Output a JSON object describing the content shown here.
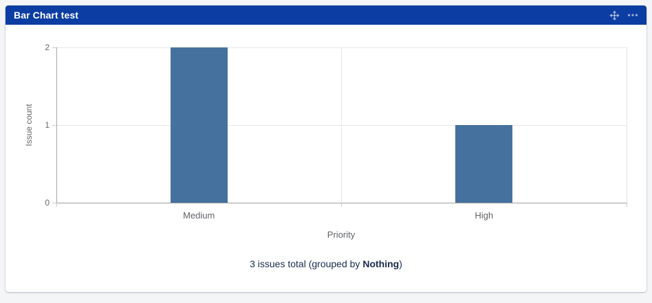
{
  "page": {
    "background_color": "#f4f5f7"
  },
  "widget": {
    "title": "Bar Chart test",
    "header_color": "#0c3da2",
    "icon_color": "rgba(255,255,255,0.6)"
  },
  "chart_data": {
    "type": "bar",
    "categories": [
      "Medium",
      "High"
    ],
    "values": [
      2,
      1
    ],
    "title": "",
    "xlabel": "Priority",
    "ylabel": "Issue count",
    "ylim": [
      0,
      2
    ],
    "y_ticks": [
      0,
      1,
      2
    ],
    "bar_color": "#45719e",
    "grid": true,
    "legend_position": "none"
  },
  "footer": {
    "text": "3 issues total (grouped by Nothing)",
    "prefix": "3 issues total (grouped by ",
    "bold": "Nothing",
    "suffix": ")"
  }
}
